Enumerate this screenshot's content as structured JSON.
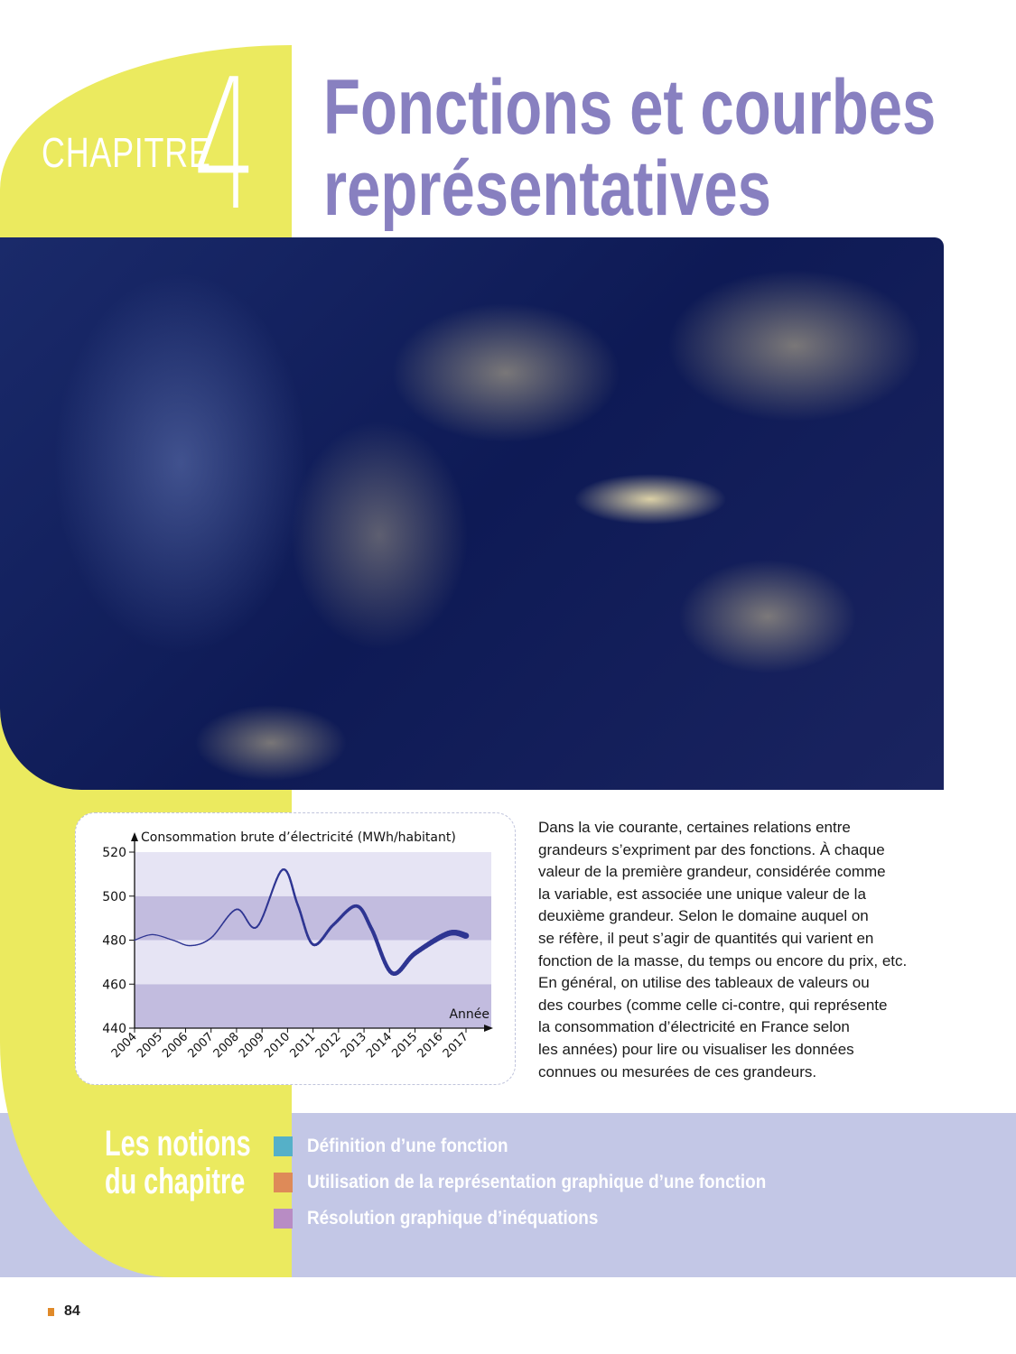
{
  "header": {
    "chapter_label": "CHAPITRE",
    "chapter_number": "4",
    "title_line1": "Fonctions et courbes",
    "title_line2": "représentatives"
  },
  "photo": {
    "subject": "night-lights-satellite-image"
  },
  "chart_data": {
    "type": "line",
    "title": "",
    "ylabel": "Consommation brute d’électricité (MWh/habitant)",
    "xlabel": "Année",
    "categories": [
      "2004",
      "2005",
      "2006",
      "2007",
      "2008",
      "2009",
      "2010",
      "2011",
      "2012",
      "2013",
      "2014",
      "2015",
      "2016",
      "2017"
    ],
    "ylim": [
      440,
      520
    ],
    "yticks": [
      440,
      460,
      480,
      500,
      520
    ],
    "y_tick_labels": [
      "440",
      "460",
      "480",
      "500",
      "520"
    ],
    "series": [
      {
        "name": "consommation",
        "color": "#2e3592",
        "x": [
          2004,
          2004.7,
          2005.5,
          2006.2,
          2007,
          2008,
          2008.8,
          2009.8,
          2010.4,
          2011,
          2011.8,
          2012.7,
          2013.3,
          2014.1,
          2015,
          2016.3,
          2017
        ],
        "y": [
          480,
          482.5,
          480,
          477.5,
          481,
          494,
          486,
          512,
          496,
          478,
          487,
          495.5,
          485,
          465,
          474,
          483,
          482
        ]
      }
    ],
    "bands_color": [
      "#e6e4f4",
      "#c2bcdf"
    ]
  },
  "intro_text": [
    "Dans la vie courante, certaines relations entre",
    "grandeurs s’expriment par des fonctions. À chaque",
    "valeur de la première grandeur, considérée comme",
    "la variable, est associée une unique valeur de la",
    "deuxième grandeur. Selon le domaine auquel on",
    "se réfère, il peut s’agir de quantités qui varient en",
    "fonction de la masse, du temps ou encore du prix, etc.",
    "En général, on utilise des tableaux de valeurs ou",
    "des courbes (comme celle ci-contre, qui représente",
    "la consommation d’électricité en France selon",
    "les années) pour lire ou visualiser les données",
    "connues ou mesurées de ces grandeurs."
  ],
  "notions": {
    "title_line1": "Les notions",
    "title_line2": "du chapitre",
    "items": [
      {
        "label": "Définition d’une fonction",
        "color": "#55b0c8"
      },
      {
        "label": "Utilisation de la représentation graphique d’une fonction",
        "color": "#de8a58"
      },
      {
        "label": "Résolution graphique d’inéquations",
        "color": "#b88cc4"
      }
    ]
  },
  "footer": {
    "page_number": "84"
  }
}
